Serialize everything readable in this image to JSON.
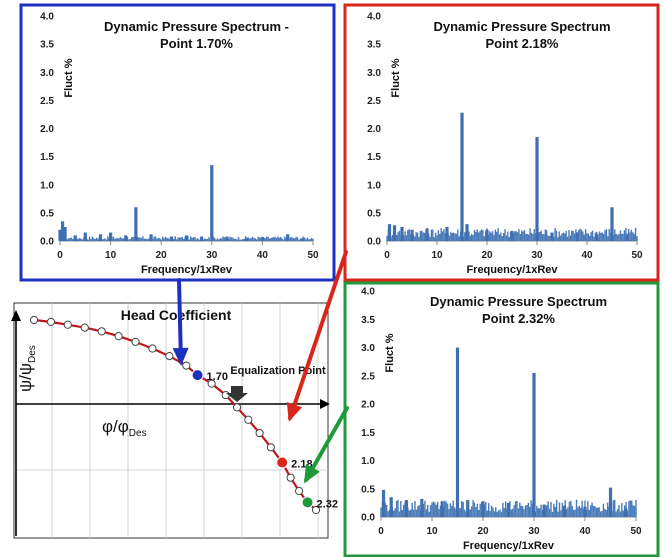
{
  "chart_data": [
    {
      "type": "bar",
      "title_line1": "Dynamic Pressure Spectrum -",
      "title_line2": "Point 1.70%",
      "xlabel": "Frequency/1xRev",
      "ylabel": "Fluct  %",
      "xlim": [
        0,
        50
      ],
      "ylim": [
        0,
        4.0
      ],
      "xticks": [
        "0",
        "10",
        "20",
        "30",
        "40",
        "50"
      ],
      "yticks": [
        "0.0",
        "0.5",
        "1.0",
        "1.5",
        "2.0",
        "2.5",
        "3.0",
        "3.5",
        "4.0"
      ],
      "series": [
        {
          "x": [
            0,
            0.5,
            1,
            3,
            5,
            8,
            10,
            13,
            15,
            18,
            22,
            25,
            28,
            30,
            33,
            37,
            40,
            45,
            48
          ],
          "values": [
            0.2,
            0.35,
            0.25,
            0.1,
            0.15,
            0.12,
            0.15,
            0.1,
            0.6,
            0.12,
            0.08,
            0.1,
            0.08,
            1.35,
            0.08,
            0.06,
            0.07,
            0.12,
            0.05
          ]
        }
      ],
      "noise_floor": 0.06,
      "frame_color": "#1f2fbf"
    },
    {
      "type": "bar",
      "title_line1": "Dynamic Pressure Spectrum",
      "title_line2": "Point 2.18%",
      "xlabel": "Frequency/1xRev",
      "ylabel": "Fluct  %",
      "xlim": [
        0,
        50
      ],
      "ylim": [
        0,
        4.0
      ],
      "xticks": [
        "0",
        "10",
        "20",
        "30",
        "40",
        "50"
      ],
      "yticks": [
        "0.0",
        "0.5",
        "1.0",
        "1.5",
        "2.0",
        "2.5",
        "3.0",
        "3.5",
        "4.0"
      ],
      "series": [
        {
          "x": [
            0.5,
            1.5,
            3,
            5,
            8,
            12,
            15,
            16,
            20,
            25,
            30,
            33,
            38,
            42,
            45,
            48
          ],
          "values": [
            0.3,
            0.28,
            0.25,
            0.2,
            0.22,
            0.25,
            2.28,
            0.3,
            0.2,
            0.18,
            1.85,
            0.15,
            0.13,
            0.12,
            0.6,
            0.1
          ]
        }
      ],
      "noise_floor": 0.17,
      "frame_color": "#d9261c"
    },
    {
      "type": "bar",
      "title_line1": "Dynamic Pressure Spectrum",
      "title_line2": "Point 2.32%",
      "xlabel": "Frequency/1xRev",
      "ylabel": "Fluct  %",
      "xlim": [
        0,
        50
      ],
      "ylim": [
        0,
        4.0
      ],
      "xticks": [
        "0",
        "10",
        "20",
        "30",
        "40",
        "50"
      ],
      "yticks": [
        "0.0",
        "0.5",
        "1.0",
        "1.5",
        "2.0",
        "2.5",
        "3.0",
        "3.5",
        "4.0"
      ],
      "series": [
        {
          "x": [
            0.5,
            2,
            5,
            8,
            12,
            15,
            17,
            20,
            25,
            30,
            32,
            36,
            40,
            45,
            48
          ],
          "values": [
            0.48,
            0.35,
            0.3,
            0.32,
            0.28,
            3.0,
            0.3,
            0.28,
            0.25,
            2.55,
            0.22,
            0.2,
            0.18,
            0.52,
            0.15
          ]
        }
      ],
      "noise_floor": 0.22,
      "frame_color": "#1f9a3a"
    },
    {
      "type": "line",
      "title": "Head Coefficient",
      "ylabel_main": "ψ/ψ",
      "ylabel_sub": "Des",
      "xlabel_main": "φ/φ",
      "xlabel_sub": "Des",
      "annotation": "Equalization Point",
      "curve_color": "#c0161b",
      "series": [
        {
          "x": [
            0.0,
            0.06,
            0.12,
            0.18,
            0.24,
            0.3,
            0.36,
            0.42,
            0.48,
            0.54,
            0.58,
            0.63,
            0.68,
            0.72,
            0.76,
            0.8,
            0.84,
            0.88,
            0.91,
            0.94,
            0.97,
            1.0
          ],
          "values": [
            1.0,
            0.99,
            0.975,
            0.96,
            0.94,
            0.915,
            0.885,
            0.85,
            0.81,
            0.76,
            0.71,
            0.665,
            0.605,
            0.54,
            0.475,
            0.405,
            0.33,
            0.25,
            0.17,
            0.1,
            0.04,
            0.0
          ]
        }
      ],
      "highlighted_points": [
        {
          "x": 0.58,
          "value": 0.71,
          "label": "1.70",
          "color": "#1f2fbf"
        },
        {
          "x": 0.88,
          "value": 0.25,
          "label": "2.18",
          "color": "#d9261c"
        },
        {
          "x": 0.97,
          "value": 0.04,
          "label": "2.32",
          "color": "#1f9a3a"
        }
      ]
    }
  ]
}
